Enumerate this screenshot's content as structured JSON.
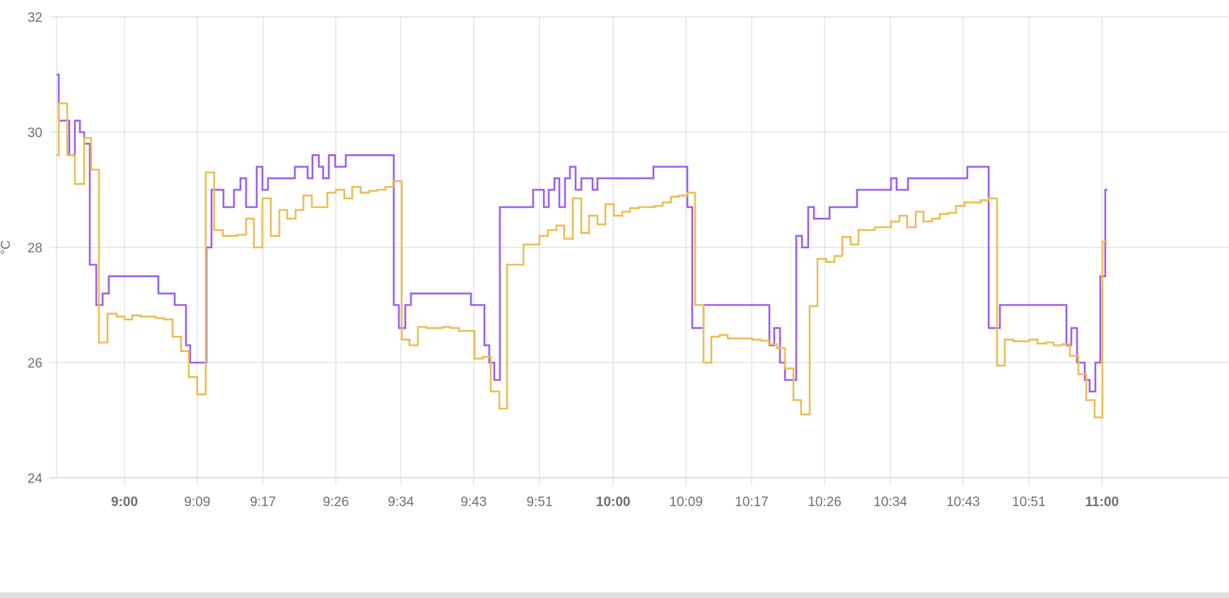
{
  "chart_data": {
    "type": "line",
    "step": true,
    "title": "",
    "xlabel": "",
    "ylabel": "°C",
    "ylim": [
      24,
      32
    ],
    "yticks": [
      "24",
      "26",
      "28",
      "30",
      "32"
    ],
    "xlim": [
      "8:51:40",
      "11:15:00"
    ],
    "xticks": [
      {
        "label": "9:00",
        "time": "9:00:00",
        "major": true
      },
      {
        "label": "9:09",
        "time": "9:08:56"
      },
      {
        "label": "9:17",
        "time": "9:17:00"
      },
      {
        "label": "9:26",
        "time": "9:25:57"
      },
      {
        "label": "9:34",
        "time": "9:33:56"
      },
      {
        "label": "9:43",
        "time": "9:42:52"
      },
      {
        "label": "9:51",
        "time": "9:50:57"
      },
      {
        "label": "10:00",
        "time": "10:00:00",
        "major": true
      },
      {
        "label": "10:09",
        "time": "10:08:56"
      },
      {
        "label": "10:17",
        "time": "10:17:00"
      },
      {
        "label": "10:26",
        "time": "10:25:57"
      },
      {
        "label": "10:34",
        "time": "10:34:01"
      },
      {
        "label": "10:43",
        "time": "10:42:57"
      },
      {
        "label": "10:51",
        "time": "10:51:01"
      },
      {
        "label": "11:00",
        "time": "11:00:00",
        "major": true
      }
    ],
    "grid": true,
    "legend": "none",
    "series": [
      {
        "color": "#9d5ee8",
        "points": [
          [
            "8:51:40",
            31.0
          ],
          [
            "8:51:56",
            30.2
          ],
          [
            "8:53:14",
            29.6
          ],
          [
            "8:53:55",
            30.2
          ],
          [
            "8:54:32",
            30.0
          ],
          [
            "8:55:03",
            29.8
          ],
          [
            "8:55:45",
            27.7
          ],
          [
            "8:56:32",
            27.0
          ],
          [
            "8:57:19",
            27.2
          ],
          [
            "8:58:05",
            27.5
          ],
          [
            "9:04:10",
            27.2
          ],
          [
            "9:06:10",
            27.0
          ],
          [
            "9:07:33",
            26.3
          ],
          [
            "9:08:04",
            26.0
          ],
          [
            "9:10:04",
            28.0
          ],
          [
            "9:10:41",
            29.0
          ],
          [
            "9:12:09",
            28.7
          ],
          [
            "9:13:27",
            29.0
          ],
          [
            "9:14:14",
            29.2
          ],
          [
            "9:14:56",
            28.7
          ],
          [
            "9:16:14",
            29.4
          ],
          [
            "9:16:56",
            29.0
          ],
          [
            "9:17:37",
            29.2
          ],
          [
            "9:20:55",
            29.4
          ],
          [
            "9:22:29",
            29.2
          ],
          [
            "9:23:05",
            29.6
          ],
          [
            "9:23:52",
            29.4
          ],
          [
            "9:24:23",
            29.2
          ],
          [
            "9:25:05",
            29.6
          ],
          [
            "9:25:52",
            29.4
          ],
          [
            "9:27:10",
            29.6
          ],
          [
            "9:33:04",
            27.0
          ],
          [
            "9:33:41",
            26.6
          ],
          [
            "9:34:28",
            27.0
          ],
          [
            "9:35:10",
            27.2
          ],
          [
            "9:42:32",
            27.0
          ],
          [
            "9:44:11",
            26.3
          ],
          [
            "9:44:47",
            26.0
          ],
          [
            "9:45:24",
            25.7
          ],
          [
            "9:46:05",
            28.7
          ],
          [
            "9:50:10",
            29.0
          ],
          [
            "9:51:29",
            28.7
          ],
          [
            "9:52:05",
            29.0
          ],
          [
            "9:52:47",
            29.2
          ],
          [
            "9:53:23",
            28.7
          ],
          [
            "9:54:05",
            29.2
          ],
          [
            "9:54:41",
            29.4
          ],
          [
            "9:55:23",
            29.0
          ],
          [
            "9:56:05",
            29.2
          ],
          [
            "9:57:28",
            29.0
          ],
          [
            "9:58:04",
            29.2
          ],
          [
            "10:04:56",
            29.4
          ],
          [
            "10:09:06",
            28.7
          ],
          [
            "10:09:42",
            26.6
          ],
          [
            "10:11:05",
            27.0
          ],
          [
            "10:19:10",
            26.3
          ],
          [
            "10:19:46",
            26.6
          ],
          [
            "10:20:28",
            26.0
          ],
          [
            "10:21:05",
            25.7
          ],
          [
            "10:22:28",
            28.2
          ],
          [
            "10:23:10",
            28.0
          ],
          [
            "10:23:56",
            28.7
          ],
          [
            "10:24:38",
            28.5
          ],
          [
            "10:26:33",
            28.7
          ],
          [
            "10:29:56",
            29.0
          ],
          [
            "10:34:06",
            29.2
          ],
          [
            "10:34:47",
            29.0
          ],
          [
            "10:36:11",
            29.2
          ],
          [
            "10:43:28",
            29.4
          ],
          [
            "10:46:05",
            26.6
          ],
          [
            "10:47:28",
            27.0
          ],
          [
            "10:55:38",
            26.3
          ],
          [
            "10:56:14",
            26.6
          ],
          [
            "10:56:56",
            26.0
          ],
          [
            "10:57:53",
            25.7
          ],
          [
            "10:58:29",
            25.5
          ],
          [
            "10:59:11",
            26.0
          ],
          [
            "10:59:47",
            27.5
          ],
          [
            "11:00:24",
            29.0
          ],
          [
            "11:00:40",
            29.0
          ]
        ]
      },
      {
        "color": "#ebbd52",
        "points": [
          [
            "8:51:40",
            29.6
          ],
          [
            "8:51:56",
            30.5
          ],
          [
            "8:52:58",
            29.6
          ],
          [
            "8:53:55",
            29.1
          ],
          [
            "8:55:03",
            29.9
          ],
          [
            "8:55:55",
            29.35
          ],
          [
            "8:56:52",
            26.35
          ],
          [
            "8:57:55",
            26.85
          ],
          [
            "8:59:03",
            26.8
          ],
          [
            "9:00:00",
            26.75
          ],
          [
            "9:00:57",
            26.82
          ],
          [
            "9:02:00",
            26.8
          ],
          [
            "9:03:49",
            26.77
          ],
          [
            "9:04:52",
            26.75
          ],
          [
            "9:05:54",
            26.45
          ],
          [
            "9:06:57",
            26.2
          ],
          [
            "9:07:54",
            25.75
          ],
          [
            "9:08:56",
            25.45
          ],
          [
            "9:09:59",
            29.3
          ],
          [
            "9:11:01",
            28.3
          ],
          [
            "9:12:04",
            28.2
          ],
          [
            "9:13:53",
            28.22
          ],
          [
            "9:14:56",
            28.5
          ],
          [
            "9:15:53",
            28.0
          ],
          [
            "9:16:56",
            28.85
          ],
          [
            "9:17:58",
            28.2
          ],
          [
            "9:19:01",
            28.65
          ],
          [
            "9:19:58",
            28.5
          ],
          [
            "9:21:01",
            28.65
          ],
          [
            "9:21:58",
            28.9
          ],
          [
            "9:23:00",
            28.7
          ],
          [
            "9:24:55",
            28.95
          ],
          [
            "9:25:57",
            29.0
          ],
          [
            "9:27:00",
            28.85
          ],
          [
            "9:27:57",
            29.05
          ],
          [
            "9:28:59",
            28.95
          ],
          [
            "9:30:02",
            28.98
          ],
          [
            "9:30:59",
            29.0
          ],
          [
            "9:32:02",
            29.05
          ],
          [
            "9:32:59",
            29.15
          ],
          [
            "9:34:02",
            26.4
          ],
          [
            "9:34:59",
            26.3
          ],
          [
            "9:36:01",
            26.62
          ],
          [
            "9:37:04",
            26.6
          ],
          [
            "9:39:04",
            26.62
          ],
          [
            "9:40:01",
            26.6
          ],
          [
            "9:41:04",
            26.55
          ],
          [
            "9:42:58",
            26.07
          ],
          [
            "9:44:01",
            26.1
          ],
          [
            "9:44:58",
            25.5
          ],
          [
            "9:46:01",
            25.2
          ],
          [
            "9:46:58",
            27.7
          ],
          [
            "9:48:58",
            28.05
          ],
          [
            "9:50:57",
            28.2
          ],
          [
            "9:51:59",
            28.3
          ],
          [
            "9:53:02",
            28.38
          ],
          [
            "9:53:59",
            28.15
          ],
          [
            "9:55:02",
            28.85
          ],
          [
            "9:56:05",
            28.25
          ],
          [
            "9:57:02",
            28.55
          ],
          [
            "9:58:04",
            28.4
          ],
          [
            "9:59:02",
            28.75
          ],
          [
            "10:00:04",
            28.55
          ],
          [
            "10:01:07",
            28.62
          ],
          [
            "10:02:04",
            28.68
          ],
          [
            "10:03:07",
            28.7
          ],
          [
            "10:05:06",
            28.72
          ],
          [
            "10:06:04",
            28.78
          ],
          [
            "10:07:06",
            28.88
          ],
          [
            "10:08:03",
            28.9
          ],
          [
            "10:09:06",
            28.95
          ],
          [
            "10:10:03",
            27.0
          ],
          [
            "10:11:05",
            26.0
          ],
          [
            "10:12:03",
            26.45
          ],
          [
            "10:13:05",
            26.48
          ],
          [
            "10:14:03",
            26.42
          ],
          [
            "10:17:05",
            26.4
          ],
          [
            "10:18:08",
            26.38
          ],
          [
            "10:19:05",
            26.32
          ],
          [
            "10:20:07",
            26.25
          ],
          [
            "10:21:05",
            25.9
          ],
          [
            "10:22:07",
            25.35
          ],
          [
            "10:23:04",
            25.1
          ],
          [
            "10:24:07",
            26.98
          ],
          [
            "10:25:04",
            27.8
          ],
          [
            "10:26:07",
            27.75
          ],
          [
            "10:27:09",
            27.85
          ],
          [
            "10:28:07",
            28.18
          ],
          [
            "10:29:09",
            28.05
          ],
          [
            "10:30:06",
            28.3
          ],
          [
            "10:32:06",
            28.35
          ],
          [
            "10:34:06",
            28.45
          ],
          [
            "10:35:08",
            28.55
          ],
          [
            "10:36:05",
            28.35
          ],
          [
            "10:37:08",
            28.62
          ],
          [
            "10:38:05",
            28.45
          ],
          [
            "10:39:08",
            28.5
          ],
          [
            "10:40:05",
            28.58
          ],
          [
            "10:41:08",
            28.6
          ],
          [
            "10:42:05",
            28.72
          ],
          [
            "10:43:08",
            28.78
          ],
          [
            "10:45:07",
            28.82
          ],
          [
            "10:46:05",
            28.85
          ],
          [
            "10:47:07",
            25.95
          ],
          [
            "10:48:04",
            26.4
          ],
          [
            "10:49:07",
            26.37
          ],
          [
            "10:51:07",
            26.4
          ],
          [
            "10:52:04",
            26.33
          ],
          [
            "10:53:07",
            26.35
          ],
          [
            "10:54:04",
            26.3
          ],
          [
            "10:55:06",
            26.32
          ],
          [
            "10:56:04",
            26.12
          ],
          [
            "10:57:06",
            25.8
          ],
          [
            "10:58:04",
            25.35
          ],
          [
            "10:59:06",
            25.05
          ],
          [
            "11:00:03",
            28.1
          ],
          [
            "11:00:40",
            28.1
          ]
        ]
      }
    ]
  }
}
